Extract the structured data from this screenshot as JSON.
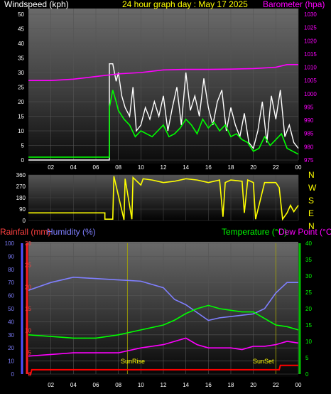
{
  "header": {
    "left_label": "Windspeed (kph)",
    "center_label": "24 hour graph day : May 17 2025",
    "right_label": "Barometer (hpa)"
  },
  "bottom_header": {
    "rainfall_label": "Rainfall (mm)",
    "humidity_label": "Humidity (%)",
    "temperature_label": "Temperature (°C)",
    "dewpoint_label": "Dew Point (°C)"
  },
  "colors": {
    "windspeed": "#ffffff",
    "windavg": "#00ff00",
    "barometer": "#ff00ff",
    "direction": "#ffff00",
    "humidity": "#7f7fff",
    "temperature": "#00ff00",
    "dewpoint": "#ff00ff",
    "rainfall": "#ff0000",
    "sun": "#ffff00"
  },
  "compass": [
    "N",
    "W",
    "S",
    "E",
    "N"
  ],
  "sun_labels": {
    "sunrise": "SunRise",
    "sunset": "SunSet"
  },
  "chart_data": [
    {
      "type": "line",
      "name": "wind",
      "x_ticks": [
        "02",
        "04",
        "06",
        "08",
        "10",
        "12",
        "14",
        "16",
        "18",
        "20",
        "22",
        "00"
      ],
      "ylim_left": [
        0,
        50
      ],
      "y_ticks_left": [
        0,
        5,
        10,
        15,
        20,
        25,
        30,
        35,
        40,
        45,
        50
      ],
      "ylim_right": [
        975,
        1030
      ],
      "y_ticks_right": [
        975,
        980,
        985,
        990,
        995,
        1000,
        1005,
        1010,
        1015,
        1020,
        1025,
        1030
      ],
      "grid": true,
      "series": [
        {
          "name": "Windspeed (kph)",
          "axis": "left",
          "x": [
            0,
            7.2,
            7.2,
            7.5,
            7.8,
            8.0,
            8.3,
            8.6,
            9.0,
            9.3,
            9.6,
            10.0,
            10.4,
            10.8,
            11.2,
            11.6,
            12.0,
            12.4,
            12.8,
            13.2,
            13.6,
            14.0,
            14.4,
            14.8,
            15.2,
            15.6,
            16.0,
            16.4,
            16.8,
            17.2,
            17.6,
            18.0,
            18.4,
            18.8,
            19.2,
            19.6,
            20.0,
            20.4,
            20.8,
            21.2,
            21.6,
            22.0,
            22.4,
            22.8,
            23.2,
            23.6,
            24.0
          ],
          "values": [
            0,
            0,
            33,
            33,
            27,
            30,
            22,
            18,
            15,
            25,
            10,
            12,
            18,
            14,
            20,
            15,
            22,
            10,
            18,
            25,
            12,
            30,
            17,
            22,
            15,
            28,
            18,
            12,
            20,
            24,
            10,
            18,
            12,
            8,
            16,
            6,
            4,
            10,
            20,
            6,
            22,
            14,
            24,
            8,
            12,
            6,
            4
          ]
        },
        {
          "name": "Average",
          "axis": "left",
          "x": [
            0,
            7.2,
            7.2,
            7.5,
            7.8,
            8.0,
            8.5,
            9.0,
            9.5,
            10.0,
            10.5,
            11.0,
            11.5,
            12.0,
            12.5,
            13.0,
            13.5,
            14.0,
            14.5,
            15.0,
            15.5,
            16.0,
            16.5,
            17.0,
            17.5,
            18.0,
            18.5,
            19.0,
            19.5,
            20.0,
            20.5,
            21.0,
            21.5,
            22.0,
            22.5,
            23.0,
            23.5,
            24.0
          ],
          "values": [
            1,
            1,
            18,
            24,
            20,
            17,
            14,
            12,
            8,
            10,
            9,
            8,
            10,
            12,
            8,
            9,
            11,
            14,
            12,
            9,
            14,
            11,
            13,
            10,
            12,
            8,
            9,
            7,
            6,
            3,
            4,
            8,
            5,
            7,
            9,
            4,
            3,
            2
          ]
        },
        {
          "name": "Barometer (hpa)",
          "axis": "right",
          "x": [
            0,
            2,
            4,
            6,
            8,
            10,
            12,
            14,
            16,
            18,
            20,
            22,
            23,
            24
          ],
          "values": [
            1005,
            1005,
            1005.5,
            1006.5,
            1007.5,
            1008,
            1009,
            1009.2,
            1009.2,
            1009.3,
            1009.5,
            1010,
            1011,
            1011
          ]
        }
      ]
    },
    {
      "type": "line",
      "name": "wind_direction",
      "ylim": [
        0,
        360
      ],
      "y_ticks": [
        0,
        90,
        180,
        270,
        360
      ],
      "series": [
        {
          "name": "Direction",
          "x": [
            0,
            6.8,
            6.8,
            7.5,
            7.6,
            8.5,
            8.6,
            9.2,
            9.3,
            10.0,
            10.2,
            11,
            12,
            13,
            14,
            15,
            16,
            17,
            17.3,
            17.5,
            18,
            19,
            19.2,
            19.5,
            20,
            20.2,
            21,
            22,
            22.3,
            22.6,
            23,
            23.3,
            23.6,
            24
          ],
          "values": [
            60,
            60,
            10,
            10,
            350,
            5,
            330,
            10,
            340,
            280,
            330,
            320,
            300,
            310,
            330,
            320,
            300,
            320,
            30,
            300,
            320,
            310,
            60,
            320,
            300,
            10,
            300,
            300,
            260,
            10,
            60,
            120,
            70,
            120
          ]
        }
      ]
    },
    {
      "type": "line",
      "name": "temp_hum_rain",
      "ylim_left": [
        0,
        100
      ],
      "y_ticks_left": [
        0,
        10,
        20,
        30,
        40,
        50,
        60,
        70,
        80,
        90,
        100
      ],
      "ylim_rain": [
        0,
        30
      ],
      "y_ticks_rain": [
        0,
        5,
        10,
        15,
        20,
        25,
        30
      ],
      "ylim_right": [
        0,
        40
      ],
      "y_ticks_right": [
        0,
        5,
        10,
        15,
        20,
        25,
        30,
        35,
        40
      ],
      "series": [
        {
          "name": "Humidity (%)",
          "axis": "left",
          "x": [
            0,
            2,
            4,
            6,
            8,
            10,
            12,
            13,
            14,
            15,
            16,
            17,
            18,
            19,
            20,
            21,
            22,
            23,
            24
          ],
          "values": [
            64,
            70,
            74,
            73,
            72,
            71,
            66,
            57,
            53,
            47,
            41,
            43,
            44,
            45,
            46,
            50,
            62,
            70,
            70
          ]
        },
        {
          "name": "Temperature (°C)",
          "axis": "right",
          "x": [
            0,
            2,
            4,
            6,
            8,
            10,
            12,
            13,
            14,
            15,
            16,
            17,
            18,
            19,
            20,
            21,
            22,
            23,
            24
          ],
          "values": [
            12,
            11.5,
            11,
            11,
            12,
            13.5,
            15,
            16.5,
            18.5,
            20,
            21,
            20,
            19.5,
            19,
            19,
            17,
            15,
            14.5,
            13.5
          ]
        },
        {
          "name": "Dew Point (°C)",
          "axis": "right",
          "x": [
            0,
            2,
            4,
            6,
            8,
            10,
            12,
            13,
            14,
            15,
            16,
            17,
            18,
            19,
            20,
            21,
            22,
            23,
            24
          ],
          "values": [
            5.5,
            6,
            6.5,
            6.5,
            6.5,
            8,
            9,
            10,
            11,
            9,
            8,
            8,
            8,
            7.5,
            8.5,
            8.5,
            9,
            10,
            9.5
          ]
        },
        {
          "name": "Rainfall (mm)",
          "axis": "rain",
          "x": [
            0,
            0.2,
            0.3,
            22.3,
            22.4,
            24
          ],
          "values": [
            0,
            0,
            1,
            1,
            2,
            2
          ]
        }
      ],
      "sunrise_hour": 8.8,
      "sunset_hour": 22.0
    }
  ]
}
